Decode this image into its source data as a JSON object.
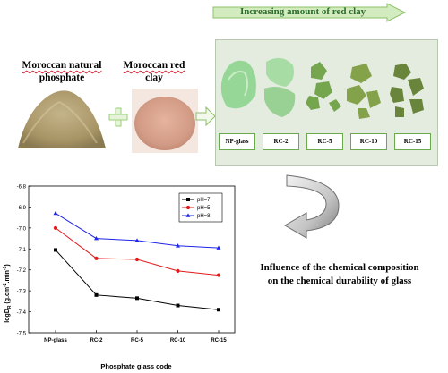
{
  "header": {
    "increasing_label": "Increasing amount of red clay"
  },
  "raw_materials": {
    "phosphate_line1": "Moroccan natural",
    "phosphate_line2": "phosphate",
    "clay_line1": "Moroccan red",
    "clay_line2": "clay"
  },
  "glasses": [
    {
      "label": "NP-glass"
    },
    {
      "label": "RC-2"
    },
    {
      "label": "RC-5"
    },
    {
      "label": "RC-10"
    },
    {
      "label": "RC-15"
    }
  ],
  "influence": {
    "line1": "Influence of the chemical composition",
    "line2": "on the chemical durability of glass"
  },
  "colors": {
    "ph7": "#000000",
    "ph5": "#e31a1c",
    "ph8": "#1f24e8",
    "arrow_green": "#bfe5a6",
    "arrow_gray": "#8a8a8a"
  },
  "chart_data": {
    "type": "line",
    "title": "",
    "xlabel": "Phosphate glass code",
    "ylabel": "logD",
    "ylabel_sub": "R",
    "ylabel_units": "(g.cm",
    "ylabel_exp1": "-2",
    "ylabel_mid": ".min",
    "ylabel_exp2": "-1",
    "ylabel_close": ")",
    "categories": [
      "NP-glass",
      "RC-2",
      "RC-5",
      "RC-10",
      "RC-15"
    ],
    "ylim": [
      -7.5,
      -6.8
    ],
    "yticks": [
      "-6.8",
      "-6.9",
      "-7.0",
      "-7.1",
      "-7.2",
      "-7.3",
      "-7.4",
      "-7.5"
    ],
    "legend_position": "top-right",
    "series": [
      {
        "name": "pH=7",
        "values": [
          -7.105,
          -7.32,
          -7.335,
          -7.37,
          -7.39
        ],
        "marker": "square"
      },
      {
        "name": "pH=5",
        "values": [
          -7.0,
          -7.145,
          -7.15,
          -7.205,
          -7.225
        ],
        "marker": "circle"
      },
      {
        "name": "pH=8",
        "values": [
          -6.93,
          -7.05,
          -7.06,
          -7.085,
          -7.095
        ],
        "marker": "triangle"
      }
    ]
  }
}
